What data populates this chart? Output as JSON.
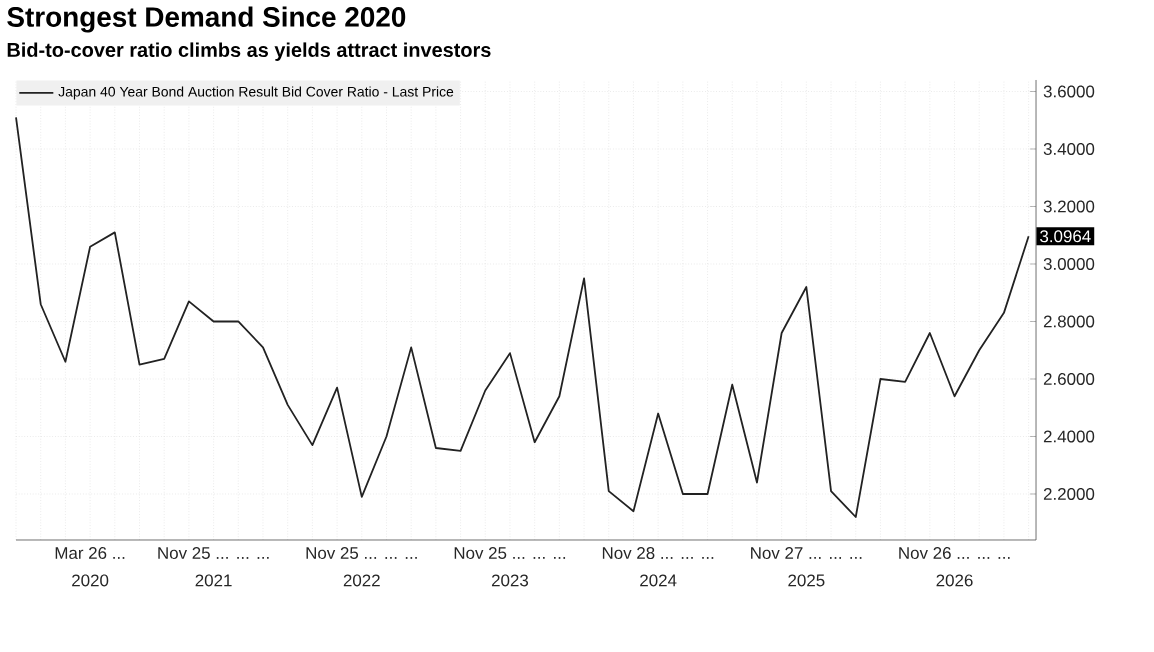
{
  "chart_data": {
    "type": "line",
    "title": "Strongest Demand Since 2020",
    "subtitle": "Bid-to-cover ratio climbs as yields attract investors",
    "categories": [
      null,
      null,
      null,
      "Mar 26 ...",
      null,
      null,
      null,
      null,
      "Nov 25 ... ... ...",
      null,
      null,
      null,
      null,
      null,
      "Nov 25 ... ... ...",
      null,
      null,
      null,
      null,
      null,
      "Nov 25 ... ... ...",
      null,
      null,
      null,
      null,
      null,
      "Nov 28 ... ... ...",
      null,
      null,
      null,
      null,
      null,
      "Nov 27 ... ... ...",
      null,
      null,
      null,
      null,
      null,
      "Nov 26 ... ... ...",
      null,
      null,
      null
    ],
    "series": [
      {
        "name": "Japan 40 Year Bond Auction Result Bid Cover Ratio - Last Price",
        "color": "#222222",
        "values": [
          3.51,
          2.86,
          2.66,
          3.06,
          3.11,
          2.65,
          2.67,
          2.87,
          2.8,
          2.8,
          2.71,
          2.51,
          2.37,
          2.57,
          2.19,
          2.4,
          2.71,
          2.36,
          2.35,
          2.56,
          2.69,
          2.38,
          2.54,
          2.95,
          2.21,
          2.14,
          2.48,
          2.2,
          2.2,
          2.58,
          2.24,
          2.76,
          2.92,
          2.21,
          2.12,
          2.6,
          2.59,
          2.76,
          2.54,
          2.7,
          2.83,
          3.0964
        ],
        "value_labels": [
          null,
          null,
          null,
          null,
          null,
          null,
          null,
          null,
          null,
          null,
          null,
          null,
          null,
          null,
          null,
          null,
          null,
          null,
          null,
          null,
          null,
          null,
          null,
          null,
          null,
          null,
          null,
          null,
          null,
          null,
          null,
          null,
          null,
          null,
          null,
          null,
          null,
          null,
          null,
          null,
          null,
          "3.0964"
        ]
      }
    ],
    "annotations": [
      "2020",
      "2021",
      "2022",
      "2023",
      "2024",
      "2025",
      "2026"
    ],
    "ylim": [
      2.04,
      3.64
    ],
    "yticks": [
      {
        "value": 2.2,
        "label": "2.2000"
      },
      {
        "value": 2.4,
        "label": "2.4000"
      },
      {
        "value": 2.6,
        "label": "2.6000"
      },
      {
        "value": 2.8,
        "label": "2.8000"
      },
      {
        "value": 3.0,
        "label": "3.0000"
      },
      {
        "value": 3.2,
        "label": "3.2000"
      },
      {
        "value": 3.4,
        "label": "3.4000"
      },
      {
        "value": 3.6,
        "label": "3.6000"
      }
    ],
    "grid": true,
    "legend": "top left",
    "marker": "none",
    "line_style": "solid"
  }
}
